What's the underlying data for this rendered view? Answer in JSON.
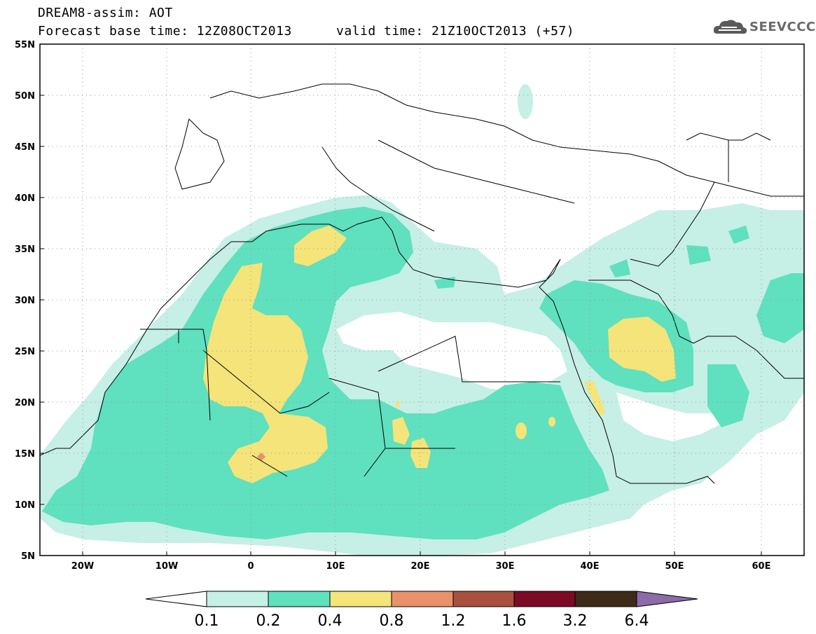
{
  "header": {
    "title_line1": "DREAM8-assim: AOT",
    "title_line2": "Forecast base time: 12Z08OCT2013",
    "valid_time": "valid time: 21Z10OCT2013 (+57)",
    "logo_text": "SEEVCCC"
  },
  "axes": {
    "lat_labels": [
      "55N",
      "50N",
      "45N",
      "40N",
      "35N",
      "30N",
      "25N",
      "20N",
      "15N",
      "10N",
      "5N"
    ],
    "lon_labels": [
      "20W",
      "10W",
      "0",
      "10E",
      "20E",
      "30E",
      "40E",
      "50E",
      "60E"
    ]
  },
  "colorbar": {
    "labels": [
      "0.1",
      "0.2",
      "0.4",
      "0.8",
      "1.2",
      "1.6",
      "3.2",
      "6.4"
    ],
    "colors": [
      "#ffffff",
      "#c6efe6",
      "#5fe0be",
      "#f4e47a",
      "#e8916a",
      "#a9503f",
      "#7b0a25",
      "#3f2a18",
      "#8d6aa8"
    ]
  },
  "colors": {
    "aot_0_1": "#c6efe6",
    "aot_0_2": "#5fe0be",
    "aot_0_4": "#f4e47a",
    "aot_0_8": "#e8916a"
  }
}
